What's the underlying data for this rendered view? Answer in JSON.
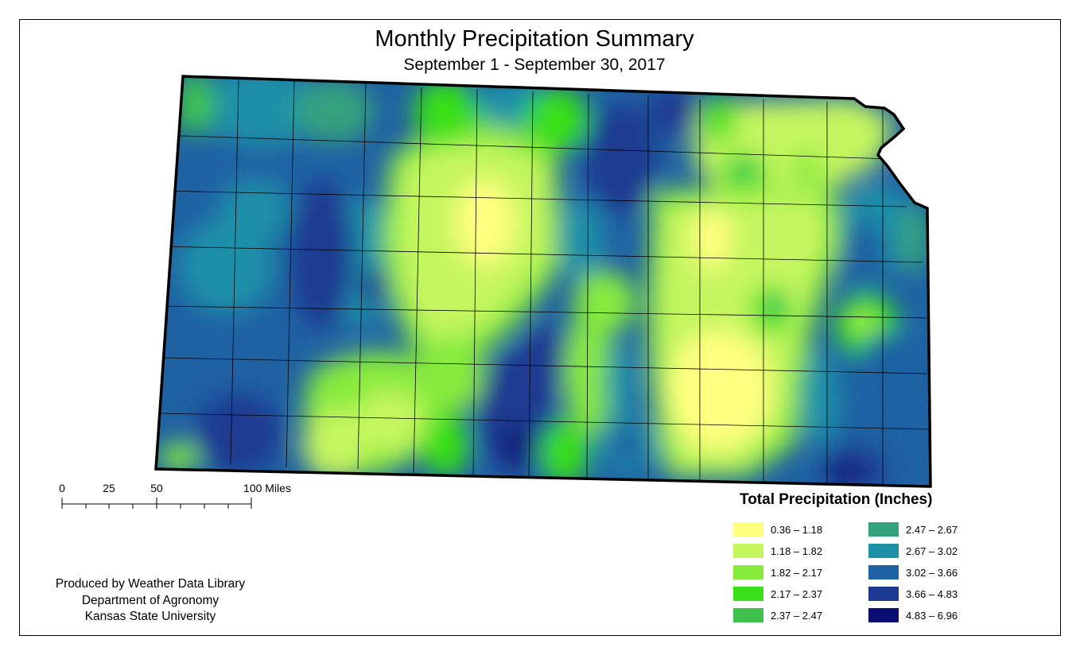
{
  "title": "Monthly Precipitation Summary",
  "subtitle": "September 1 - September 30, 2017",
  "scale": {
    "ticks": [
      "0",
      "25",
      "50",
      "100 Miles"
    ]
  },
  "credit": [
    "Produced by Weather Data Library",
    "Department of Agronomy",
    "Kansas State University"
  ],
  "legend": {
    "title": "Total Precipitation (Inches)",
    "items": [
      {
        "label": "0.36 – 1.18",
        "color": "#ffff80"
      },
      {
        "label": "1.18 – 1.82",
        "color": "#c5f65e"
      },
      {
        "label": "1.82 – 2.17",
        "color": "#87eb3c"
      },
      {
        "label": "2.17 – 2.37",
        "color": "#38e018"
      },
      {
        "label": "2.37 – 2.47",
        "color": "#3ec24d"
      },
      {
        "label": "2.47 – 2.67",
        "color": "#35a27e"
      },
      {
        "label": "2.67 – 3.02",
        "color": "#1e90a8"
      },
      {
        "label": "3.02 – 3.66",
        "color": "#1f62a3"
      },
      {
        "label": "3.66 – 4.83",
        "color": "#1c3a91"
      },
      {
        "label": "4.83 – 6.96",
        "color": "#0b0f73"
      }
    ]
  }
}
